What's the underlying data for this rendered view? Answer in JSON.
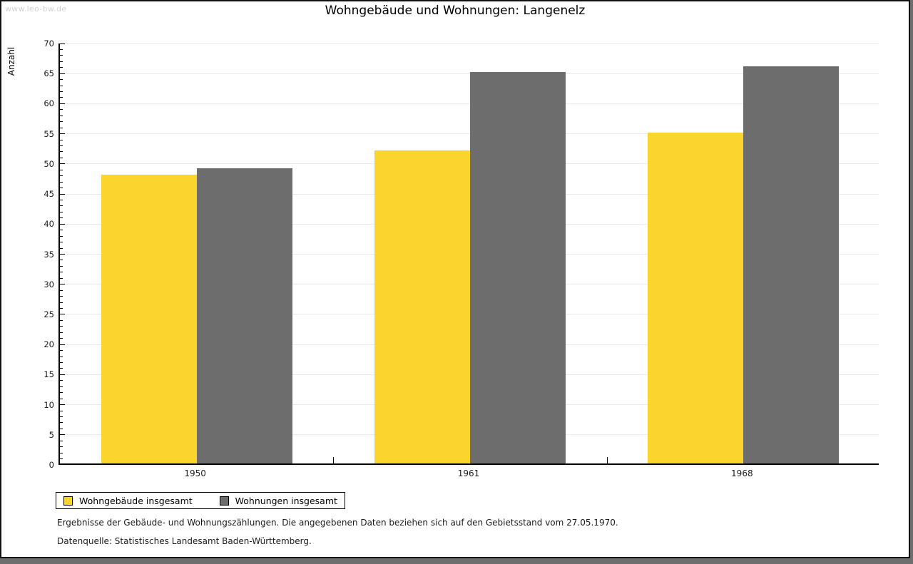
{
  "watermark": "www.leo-bw.de",
  "chart_data": {
    "type": "bar",
    "title": "Wohngebäude und Wohnungen: Langenelz",
    "xlabel": "",
    "ylabel": "Anzahl",
    "categories": [
      "1950",
      "1961",
      "1968"
    ],
    "series": [
      {
        "name": "Wohngebäude insgesamt",
        "color": "#fcd42e",
        "values": [
          48,
          52,
          55
        ]
      },
      {
        "name": "Wohnungen insgesamt",
        "color": "#6d6d6d",
        "values": [
          49,
          65,
          66
        ]
      }
    ],
    "ylim": [
      0,
      70
    ],
    "y_major_step": 5,
    "y_minor_step": 1,
    "grid": true,
    "legend_position": "bottom-left"
  },
  "footnotes": [
    "Ergebnisse der Gebäude- und Wohnungszählungen. Die angegebenen Daten beziehen sich auf den Gebietsstand vom 27.05.1970.",
    "Datenquelle: Statistisches Landesamt Baden-Württemberg."
  ],
  "colors": {
    "page_background": "#6e6e6e",
    "card_background": "#ffffff",
    "border": "#111111",
    "gridline": "#e9e9e9",
    "axis": "#000000",
    "watermark": "#d0d0d0",
    "text": "#1a1a1a"
  }
}
